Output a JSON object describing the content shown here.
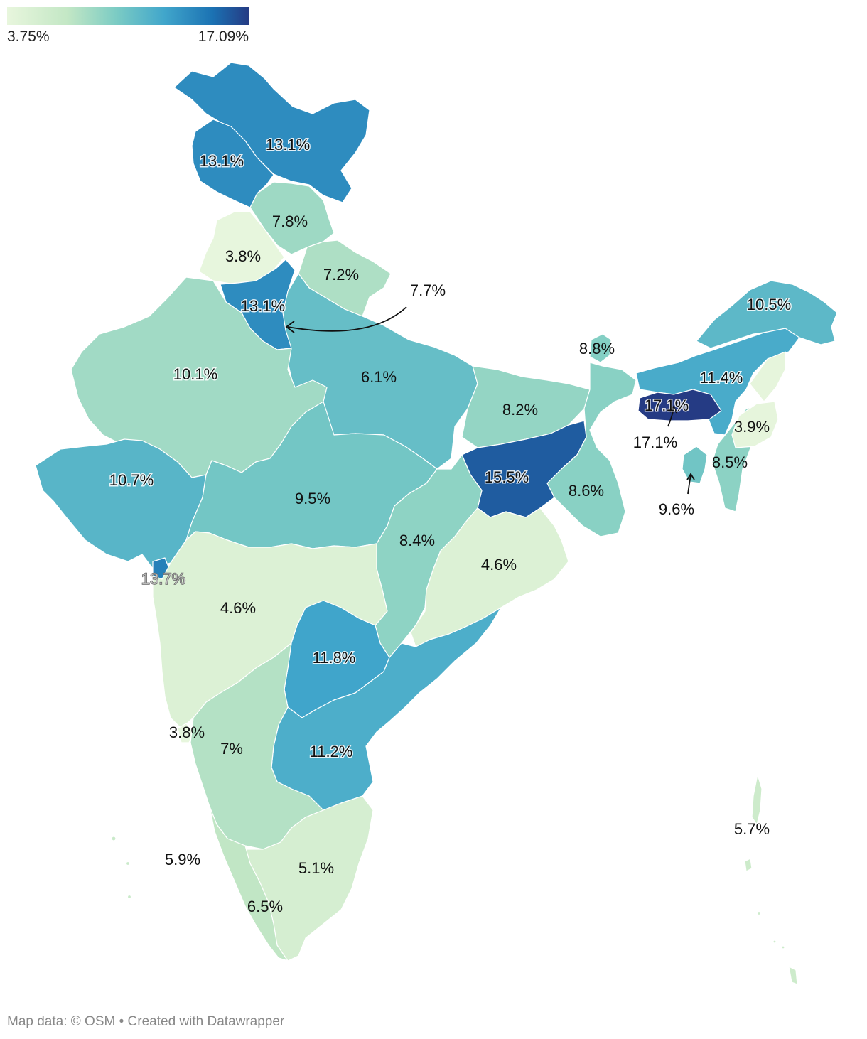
{
  "legend": {
    "min_label": "3.75%",
    "max_label": "17.09%",
    "min": 3.75,
    "max": 17.09,
    "colors": [
      "#e8f6dd",
      "#c3e7c5",
      "#7cccc4",
      "#41a6cb",
      "#1b72b3",
      "#253b84"
    ]
  },
  "regions": [
    {
      "name": "ladakh",
      "label": "13.1%",
      "value": 13.1
    },
    {
      "name": "jammu-kashmir",
      "label": "13.1%",
      "value": 13.1
    },
    {
      "name": "himachal-pradesh",
      "label": "7.8%",
      "value": 7.8
    },
    {
      "name": "punjab",
      "label": "3.8%",
      "value": 3.8
    },
    {
      "name": "uttarakhand",
      "label": "7.2%",
      "value": 7.2
    },
    {
      "name": "haryana",
      "label": "13.1%",
      "value": 13.1
    },
    {
      "name": "delhi",
      "label": "7.7%",
      "value": 7.7
    },
    {
      "name": "rajasthan",
      "label": "10.1%",
      "value": 10.1
    },
    {
      "name": "uttar-pradesh",
      "label": "6.1%",
      "value": 6.1
    },
    {
      "name": "bihar",
      "label": "8.2%",
      "value": 8.2
    },
    {
      "name": "sikkim",
      "label": "8.8%",
      "value": 8.8
    },
    {
      "name": "arunachal-pradesh",
      "label": "10.5%",
      "value": 10.5
    },
    {
      "name": "assam",
      "label": "11.4%",
      "value": 11.4
    },
    {
      "name": "meghalaya",
      "label": "17.1%",
      "value": 17.1
    },
    {
      "name": "meghalaya-callout",
      "label": "17.1%",
      "value": 17.1
    },
    {
      "name": "nagaland",
      "label": "3.9%",
      "value": 3.9
    },
    {
      "name": "manipur",
      "label": "8.5%",
      "value": 8.5
    },
    {
      "name": "tripura",
      "label": "9.6%",
      "value": 9.6
    },
    {
      "name": "gujarat",
      "label": "10.7%",
      "value": 10.7
    },
    {
      "name": "madhya-pradesh",
      "label": "9.5%",
      "value": 9.5
    },
    {
      "name": "jharkhand",
      "label": "15.5%",
      "value": 15.5
    },
    {
      "name": "west-bengal",
      "label": "8.6%",
      "value": 8.6
    },
    {
      "name": "chhattisgarh",
      "label": "8.4%",
      "value": 8.4
    },
    {
      "name": "odisha",
      "label": "4.6%",
      "value": 4.6
    },
    {
      "name": "dadra-daman-diu",
      "label": "13.7%",
      "value": 13.7
    },
    {
      "name": "maharashtra",
      "label": "4.6%",
      "value": 4.6
    },
    {
      "name": "telangana",
      "label": "11.8%",
      "value": 11.8
    },
    {
      "name": "andhra-pradesh",
      "label": "11.2%",
      "value": 11.2
    },
    {
      "name": "goa",
      "label": "3.8%",
      "value": 3.8
    },
    {
      "name": "karnataka",
      "label": "7%",
      "value": 7.0
    },
    {
      "name": "lakshadweep",
      "label": "5.9%",
      "value": 5.9
    },
    {
      "name": "tamil-nadu",
      "label": "5.1%",
      "value": 5.1
    },
    {
      "name": "kerala",
      "label": "6.5%",
      "value": 6.5
    },
    {
      "name": "andaman-nicobar",
      "label": "5.7%",
      "value": 5.7
    }
  ],
  "footer": {
    "map_data": "Map data: © OSM",
    "created_with": "• Created with Datawrapper"
  }
}
